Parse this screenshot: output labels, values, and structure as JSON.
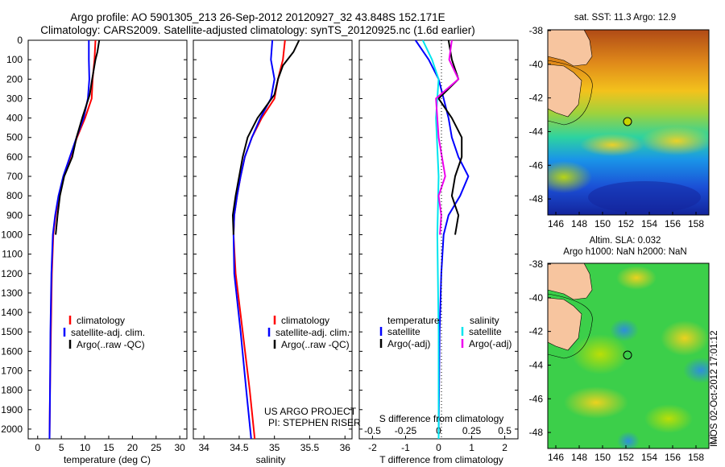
{
  "header": {
    "line1": "Argo profile: AO 5901305_213 26-Sep-2012 20120927_32 43.848S 152.171E",
    "line2": "Climatology: CARS2009. Satellite-adjusted climatology: synTS_20120925.nc (1.6d earlier)"
  },
  "depth_ticks": [
    "0",
    "100",
    "200",
    "300",
    "400",
    "500",
    "600",
    "700",
    "800",
    "900",
    "1000",
    "1100",
    "1200",
    "1300",
    "1400",
    "1500",
    "1600",
    "1700",
    "1800",
    "1900",
    "2000"
  ],
  "panels": {
    "temperature": {
      "xlabel": "temperature (deg C)",
      "xticks": [
        "0",
        "5",
        "10",
        "15",
        "20",
        "25",
        "30"
      ],
      "legend": [
        "climatology",
        "satellite-adj. clim.",
        "Argo(..raw -QC)"
      ]
    },
    "salinity": {
      "xlabel": "salinity",
      "xticks": [
        "34",
        "34.5",
        "35",
        "35.5",
        "36"
      ],
      "legend": [
        "climatology",
        "satellite-adj. clim.",
        "Argo(..raw -QC)"
      ],
      "credit1": "US ARGO PROJECT",
      "credit2": "PI: STEPHEN RISER"
    },
    "difference": {
      "top_label": "S difference from climatology",
      "top_ticks": [
        "-0.5",
        "-0.25",
        "0",
        "0.25",
        "0.5"
      ],
      "xlabel": "T difference from climatology",
      "xticks": [
        "-2",
        "-1",
        "0",
        "1",
        "2"
      ],
      "legend_t_head": "temperature",
      "legend_s_head": "salinity",
      "legend_t": [
        "satellite",
        "Argo(-adj)"
      ],
      "legend_s": [
        "satellite",
        "Argo(-adj)"
      ]
    }
  },
  "maps": {
    "sst_title": "sat. SST: 11.3 Argo: 12.9",
    "sla_title1": "Altim. SLA: 0.032",
    "sla_title2": "Argo h1000: NaN h2000: NaN",
    "lat_ticks": [
      "-38",
      "-40",
      "-42",
      "-44",
      "-46",
      "-48"
    ],
    "lon_ticks": [
      "146",
      "148",
      "150",
      "152",
      "154",
      "156",
      "158"
    ]
  },
  "side_text": "IMOS 02-Oct-2012 17:01:12",
  "colors": {
    "climatology": "#ff0000",
    "satellite": "#0000ff",
    "argo": "#000000",
    "sal_satellite": "#00e5ee",
    "sal_argo": "#ee00ee",
    "land": "#f7c59f"
  },
  "chart_data": [
    {
      "type": "line",
      "ylabel": "",
      "xlabel": "temperature (deg C)",
      "xlim": [
        -2,
        31.5
      ],
      "ylim": [
        2050,
        0
      ],
      "series": [
        {
          "name": "climatology",
          "x": [
            12.2,
            12.0,
            11.6,
            11.4,
            10.0,
            8.3,
            6.9,
            5.5,
            4.5,
            3.8,
            3.3,
            3.0,
            2.8,
            2.6,
            2.5
          ],
          "y": [
            0,
            100,
            200,
            300,
            400,
            500,
            600,
            700,
            800,
            900,
            1000,
            1200,
            1500,
            1800,
            2050
          ]
        },
        {
          "name": "satellite-adj. clim.",
          "x": [
            10.8,
            10.8,
            10.9,
            10.6,
            9.7,
            8.2,
            6.8,
            5.4,
            4.4,
            3.7,
            3.2,
            2.9,
            2.7,
            2.6,
            2.5
          ],
          "y": [
            0,
            100,
            200,
            300,
            400,
            500,
            600,
            700,
            800,
            900,
            1000,
            1200,
            1500,
            1800,
            2050
          ]
        },
        {
          "name": "Argo(..raw -QC)",
          "x": [
            13.0,
            12.6,
            12.2,
            11.5,
            11.0,
            9.4,
            8.2,
            7.3,
            5.6,
            4.7,
            4.2,
            3.8
          ],
          "y": [
            0,
            60,
            100,
            200,
            280,
            400,
            500,
            600,
            700,
            800,
            900,
            1000
          ]
        }
      ]
    },
    {
      "type": "line",
      "xlabel": "salinity",
      "xlim": [
        33.85,
        36.1
      ],
      "ylim": [
        2050,
        0
      ],
      "series": [
        {
          "name": "climatology",
          "x": [
            35.15,
            35.12,
            35.05,
            35.0,
            34.82,
            34.68,
            34.58,
            34.52,
            34.47,
            34.43,
            34.42,
            34.45,
            34.55,
            34.65,
            34.72
          ],
          "y": [
            0,
            100,
            200,
            300,
            400,
            500,
            600,
            700,
            800,
            900,
            1000,
            1200,
            1500,
            1800,
            2050
          ]
        },
        {
          "name": "satellite-adj. clim.",
          "x": [
            34.97,
            34.95,
            35.0,
            34.95,
            34.8,
            34.68,
            34.58,
            34.52,
            34.47,
            34.43,
            34.42,
            34.43,
            34.52,
            34.6,
            34.67
          ],
          "y": [
            0,
            100,
            200,
            300,
            400,
            500,
            600,
            700,
            800,
            900,
            1000,
            1200,
            1500,
            1800,
            2050
          ]
        },
        {
          "name": "Argo(..raw -QC)",
          "x": [
            35.35,
            35.27,
            35.12,
            35.05,
            35.0,
            34.76,
            34.62,
            34.55,
            34.5,
            34.45,
            34.41,
            34.42
          ],
          "y": [
            0,
            60,
            130,
            200,
            280,
            400,
            500,
            600,
            700,
            800,
            900,
            1000
          ]
        }
      ]
    },
    {
      "type": "line",
      "xlabel": "T difference from climatology",
      "xlim": [
        -2.4,
        2.4
      ],
      "ylim": [
        2050,
        0
      ],
      "series": [
        {
          "name": "temperature satellite",
          "x": [
            -0.7,
            -0.3,
            0.0,
            0.15,
            0.3,
            0.4,
            0.6,
            0.9,
            0.65,
            0.3,
            0.15,
            0.08,
            0.03,
            0.0
          ],
          "y": [
            0,
            100,
            200,
            300,
            400,
            500,
            600,
            700,
            800,
            900,
            1000,
            1200,
            1500,
            2050
          ]
        },
        {
          "name": "temperature Argo(-adj)",
          "x": [
            0.3,
            0.4,
            0.6,
            0.0,
            0.4,
            0.7,
            0.7,
            0.5,
            0.4,
            0.6,
            0.5
          ],
          "y": [
            0,
            100,
            200,
            300,
            400,
            500,
            600,
            700,
            800,
            900,
            1000
          ]
        },
        {
          "name": "salinity satellite",
          "x": [
            -0.12,
            -0.05,
            0.0,
            -0.02,
            0.0,
            -0.01,
            0.0,
            0.0
          ],
          "y": [
            0,
            100,
            200,
            400,
            700,
            1000,
            1500,
            2050
          ]
        },
        {
          "name": "salinity Argo(-adj)",
          "x": [
            0.1,
            0.08,
            0.15,
            -0.02,
            0.0,
            0.05,
            0.0,
            0.02,
            0.01
          ],
          "y": [
            0,
            100,
            200,
            300,
            500,
            700,
            800,
            900,
            1000
          ]
        }
      ]
    }
  ]
}
